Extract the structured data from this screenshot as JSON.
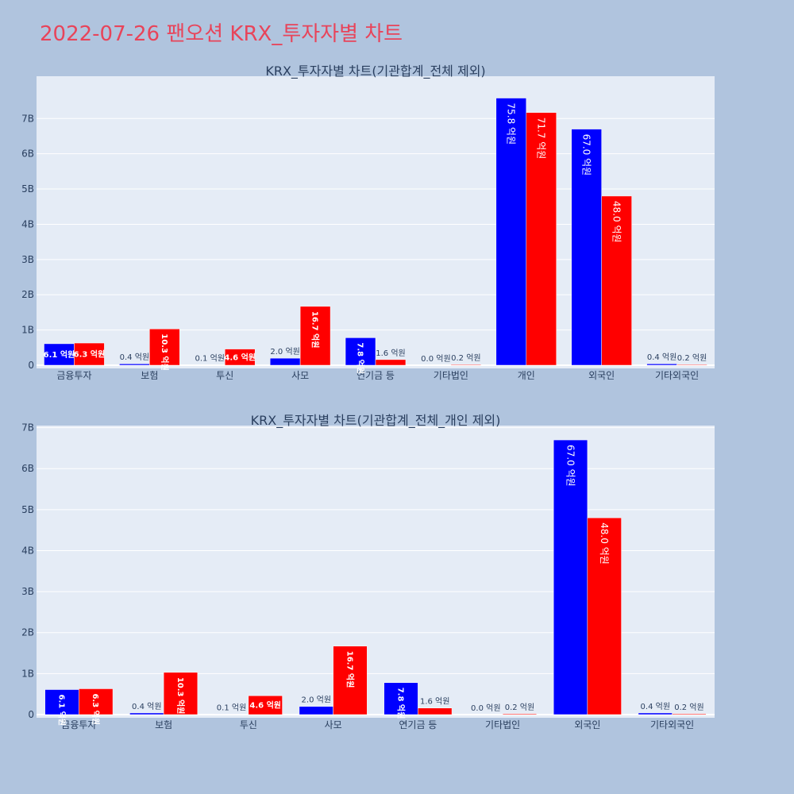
{
  "page_title": "2022-07-26 팬오션 KRX_투자자별 차트",
  "colors": {
    "buy": "#0000ff",
    "sell": "#ff0000",
    "paper": "#b0c4de",
    "plot": "#e5ecf6",
    "title": "#e8445a"
  },
  "chart_data": [
    {
      "type": "bar",
      "title": "KRX_투자자별 차트(기관합계_전체 제외)",
      "categories": [
        "금융투자",
        "보험",
        "투신",
        "사모",
        "연기금 등",
        "기타법인",
        "개인",
        "외국인",
        "기타외국인"
      ],
      "series": [
        {
          "color": "#0000ff",
          "values": [
            610000000,
            40000000,
            10000000,
            200000000,
            780000000,
            0,
            7580000000,
            6700000000,
            40000000
          ],
          "labels": [
            "6.1 억원",
            "0.4 억원",
            "0.1 억원",
            "2.0 억원",
            "7.8 억원",
            "0.0 억원",
            "75.8 억원",
            "67.0 억원",
            "0.4 억원"
          ]
        },
        {
          "color": "#ff0000",
          "values": [
            630000000,
            1030000000,
            460000000,
            1670000000,
            160000000,
            20000000,
            7170000000,
            4800000000,
            20000000
          ],
          "labels": [
            "6.3 억원",
            "10.3 억원",
            "4.6 억원",
            "16.7 억원",
            "1.6 억원",
            "0.2 억원",
            "71.7 억원",
            "48.0 억원",
            "0.2 억원"
          ]
        }
      ],
      "ylim": [
        0,
        8200000000
      ],
      "yticks": [
        0,
        1000000000,
        2000000000,
        3000000000,
        4000000000,
        5000000000,
        6000000000,
        7000000000
      ],
      "yticklabels": [
        "0",
        "1B",
        "2B",
        "3B",
        "4B",
        "5B",
        "6B",
        "7B"
      ],
      "barmode": "group",
      "grid": true
    },
    {
      "type": "bar",
      "title": "KRX_투자자별 차트(기관합계_전체_개인 제외)",
      "categories": [
        "금융투자",
        "보험",
        "투신",
        "사모",
        "연기금 등",
        "기타법인",
        "외국인",
        "기타외국인"
      ],
      "series": [
        {
          "color": "#0000ff",
          "values": [
            610000000,
            40000000,
            10000000,
            200000000,
            780000000,
            0,
            6700000000,
            40000000
          ],
          "labels": [
            "6.1 억원",
            "0.4 억원",
            "0.1 억원",
            "2.0 억원",
            "7.8 억원",
            "0.0 억원",
            "67.0 억원",
            "0.4 억원"
          ]
        },
        {
          "color": "#ff0000",
          "values": [
            630000000,
            1030000000,
            460000000,
            1670000000,
            160000000,
            20000000,
            4800000000,
            20000000
          ],
          "labels": [
            "6.3 억원",
            "10.3 억원",
            "4.6 억원",
            "16.7 억원",
            "1.6 억원",
            "0.2 억원",
            "48.0 억원",
            "0.2 억원"
          ]
        }
      ],
      "ylim": [
        0,
        7050000000
      ],
      "yticks": [
        0,
        1000000000,
        2000000000,
        3000000000,
        4000000000,
        5000000000,
        6000000000,
        7000000000
      ],
      "yticklabels": [
        "0",
        "1B",
        "2B",
        "3B",
        "4B",
        "5B",
        "6B",
        "7B"
      ],
      "barmode": "group",
      "grid": true
    }
  ]
}
